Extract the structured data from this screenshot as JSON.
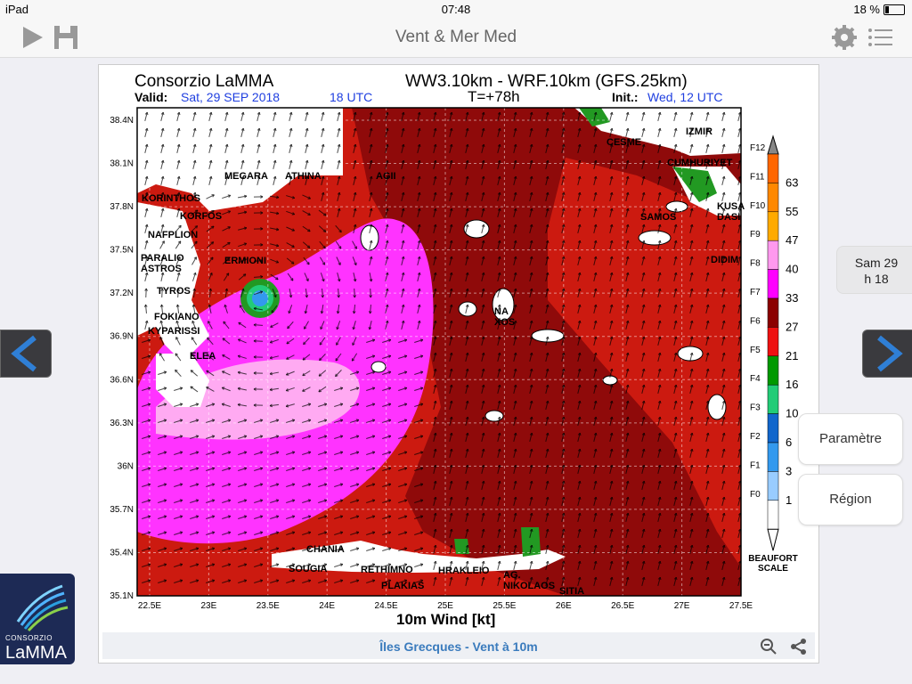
{
  "status": {
    "device": "iPad",
    "time": "07:48",
    "battery": "18 %"
  },
  "nav": {
    "title": "Vent & Mer Med",
    "play_icon": "play-icon",
    "save_icon": "save-icon",
    "settings_icon": "gear-icon",
    "list_icon": "list-icon"
  },
  "map": {
    "org": "Consorzio LaMMA",
    "model": "WW3.10km - WRF.10km (GFS.25km)",
    "valid_label": "Valid:",
    "valid_value": "Sat, 29 SEP 2018",
    "valid_time": "18 UTC",
    "t_offset": "T=+78h",
    "init_label": "Init.:",
    "init_value": "Wed, 12 UTC",
    "xlabel": "10m Wind [kt]",
    "lat_labels": [
      "38.4N",
      "38.1N",
      "37.8N",
      "37.5N",
      "37.2N",
      "36.9N",
      "36.6N",
      "36.3N",
      "36N",
      "35.7N",
      "35.4N",
      "35.1N"
    ],
    "lon_labels": [
      "22.5E",
      "23E",
      "23.5E",
      "24E",
      "24.5E",
      "25E",
      "25.5E",
      "26E",
      "26.5E",
      "27E",
      "27.5E"
    ],
    "places": [
      "CESME",
      "IZMIR",
      "CUMHURIYET",
      "KUSA DASI",
      "SAMOS",
      "DIDIM",
      "MEGARA",
      "ATHINA",
      "AGII",
      "KORINTHOS",
      "KORFOS",
      "NAFPLION",
      "ERMIONI",
      "PARALIO ASTROS",
      "TYROS",
      "FOKIANO",
      "KYPARISSI",
      "ELEA",
      "NA XOS",
      "CHANIA",
      "SOUGIA",
      "RETHIMNO",
      "PLAKIAS",
      "HRAKLEIO",
      "AG. NIKOLAOS",
      "SITIA"
    ],
    "scale": {
      "kt": [
        "63",
        "55",
        "47",
        "40",
        "33",
        "27",
        "21",
        "16",
        "10",
        "6",
        "3",
        "1"
      ],
      "beaufort": [
        "F12",
        "F11",
        "F10",
        "F9",
        "F8",
        "F7",
        "F6",
        "F5",
        "F4",
        "F3",
        "F2",
        "F1",
        "F0"
      ],
      "title": "BEAUFORT SCALE",
      "colors": [
        "#ff6600",
        "#ff8800",
        "#ffaa00",
        "#ff99ee",
        "#ff00ff",
        "#8b0000",
        "#ee1111",
        "#009900",
        "#22cc77",
        "#1166cc",
        "#3399ee",
        "#99ccff",
        "#ffffff"
      ]
    }
  },
  "caption": "Îles Grecques - Vent à 10m",
  "side": {
    "date": "Sam 29",
    "hour": "h 18",
    "param_btn": "Paramètre",
    "region_btn": "Région"
  },
  "logo": {
    "line1": "CONSORZIO",
    "line2": "LaMMA"
  }
}
